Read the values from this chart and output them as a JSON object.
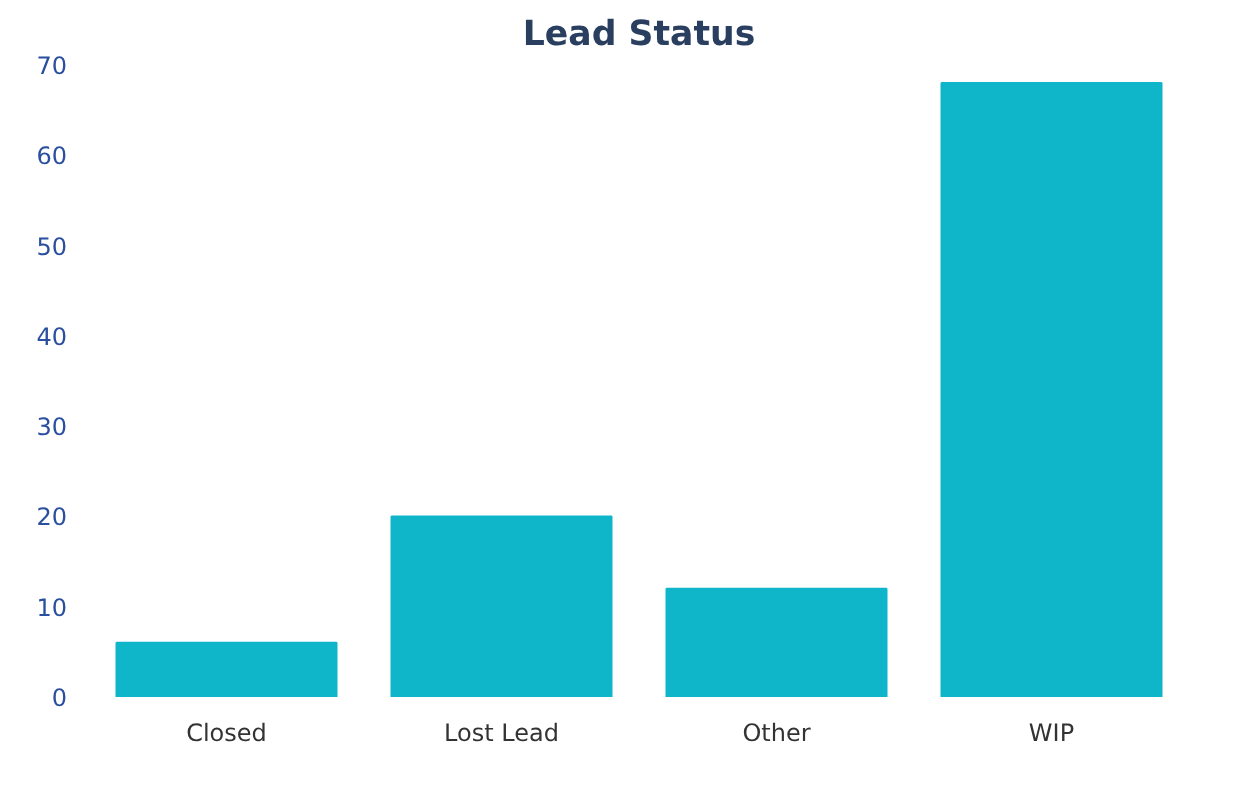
{
  "chart_data": {
    "type": "bar",
    "title": "Lead Status",
    "categories": [
      "Closed",
      "Lost Lead",
      "Other",
      "WIP"
    ],
    "values": [
      6,
      20,
      12,
      68
    ],
    "color": "#0fb5c9",
    "ylim": [
      0,
      70
    ],
    "yticks": [
      0,
      10,
      20,
      30,
      40,
      50,
      60,
      70
    ],
    "grid": false
  }
}
